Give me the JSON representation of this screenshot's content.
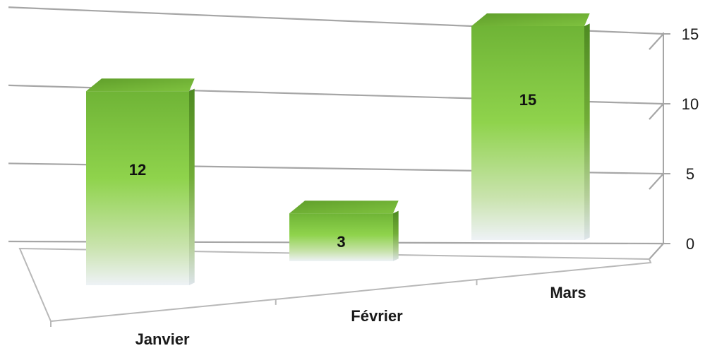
{
  "chart_data": {
    "type": "bar",
    "categories": [
      "Janvier",
      "Février",
      "Mars"
    ],
    "values": [
      12,
      3,
      15
    ],
    "ylim": [
      0,
      15
    ],
    "yticks": [
      0,
      5,
      10,
      15
    ],
    "grid": true,
    "legend": "none",
    "colors": {
      "bar_top": "#5e9e2a",
      "bar_mid": "#8fd34c",
      "bar_bottom": "#eef2f6",
      "bar_top_face": "#6fb436",
      "bar_top_face_dark": "#4f8a22",
      "gridline": "#a6a6a6"
    }
  }
}
